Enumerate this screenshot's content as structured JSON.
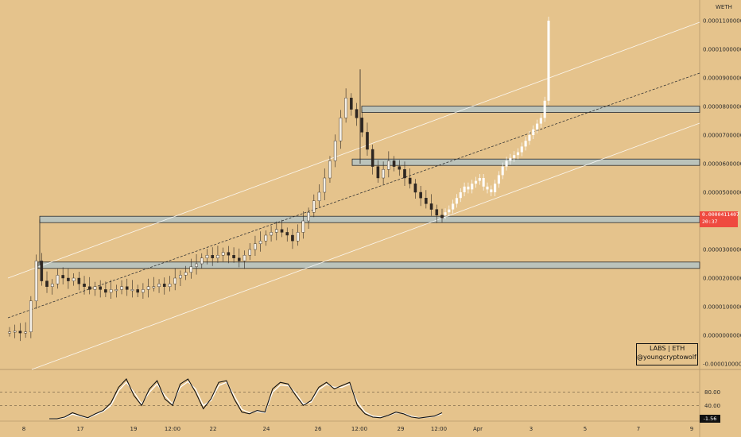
{
  "chart_data": {
    "type": "candlestick",
    "symbol_label": "WETH",
    "price_scale": {
      "ticks": [
        "0.0001100000",
        "0.0001000000",
        "0.0000900000",
        "0.0000800000",
        "0.0000700000",
        "0.0000600000",
        "0.0000500000",
        "0.0000300000",
        "0.0000200000",
        "0.0000100000",
        "0.0000000000",
        "-0.0000100000"
      ],
      "tick_values": [
        0.00011,
        0.0001,
        9e-05,
        8e-05,
        7e-05,
        6e-05,
        5e-05,
        3e-05,
        2e-05,
        1e-05,
        0,
        -1e-05
      ],
      "ylim": [
        -1.2e-05,
        0.000115
      ]
    },
    "time_axis": {
      "labels": [
        "8",
        "17",
        "19",
        "12:00",
        "22",
        "24",
        "26",
        "12:00",
        "29",
        "12:00",
        "Apr",
        "3",
        "5",
        "7",
        "9"
      ]
    },
    "current_price": {
      "value": "0.0000411407",
      "countdown": "20:37",
      "color": "#ef4a3f"
    },
    "support_resistance_zones": [
      {
        "price": 7.9e-05
      },
      {
        "price": 6.05e-05
      },
      {
        "price": 4.05e-05
      },
      {
        "price": 2.45e-05
      }
    ],
    "channel": {
      "upper": [
        [
          1.7e-05,
          9.9e-05
        ]
      ],
      "middle": [
        [
          8e-06,
          9e-05
        ]
      ],
      "lower": [
        [
          -1.2e-05,
          7.6e-05
        ]
      ]
    },
    "candles_historic": [
      1.2e-06,
      1.5e-06,
      8e-07,
      1.2e-06,
      1.2e-05,
      2.6e-05,
      1.9e-05,
      1.7e-05,
      1.8e-05,
      2.1e-05,
      2e-05,
      1.9e-05,
      2e-05,
      1.8e-05,
      1.7e-05,
      1.6e-05,
      1.7e-05,
      1.6e-05,
      1.5e-05,
      1.6e-05,
      1.6e-05,
      1.7e-05,
      1.6e-05,
      1.6e-05,
      1.5e-05,
      1.6e-05,
      1.7e-05,
      1.7e-05,
      1.8e-05,
      1.7e-05,
      1.8e-05,
      2e-05,
      2.1e-05,
      2.2e-05,
      2.4e-05,
      2.5e-05,
      2.7e-05,
      2.8e-05,
      2.7e-05,
      2.8e-05,
      2.9e-05,
      2.8e-05,
      2.7e-05,
      2.6e-05,
      2.8e-05,
      3e-05,
      3.2e-05,
      3.3e-05,
      3.5e-05,
      3.6e-05,
      3.7e-05,
      3.6e-05,
      3.5e-05,
      3.3e-05,
      3.6e-05,
      4e-05,
      4.3e-05,
      4.7e-05,
      5e-05,
      5.5e-05,
      6.1e-05,
      6.8e-05,
      7.6e-05,
      8.3e-05,
      7.9e-05,
      7.6e-05,
      7.1e-05,
      6.5e-05,
      5.9e-05,
      5.5e-05,
      5.8e-05,
      6.1e-05,
      5.9e-05,
      5.8e-05,
      5.5e-05,
      5.3e-05,
      5e-05,
      4.8e-05,
      4.6e-05,
      4.4e-05,
      4.2e-05,
      4.1e-05
    ],
    "candles_projection": [
      4.3e-05,
      4.4e-05,
      4.6e-05,
      4.8e-05,
      5e-05,
      5.2e-05,
      5.1e-05,
      5.3e-05,
      5.4e-05,
      5.5e-05,
      5.2e-05,
      5.1e-05,
      5e-05,
      5.3e-05,
      5.6e-05,
      5.9e-05,
      6.1e-05,
      6.2e-05,
      6.3e-05,
      6.4e-05,
      6.6e-05,
      6.8e-05,
      7e-05,
      7.2e-05,
      7.4e-05,
      7.6e-05,
      8.2e-05,
      0.00011
    ],
    "oscillator": {
      "levels": [
        "80.00",
        "40.00"
      ],
      "level_values": [
        80,
        40
      ],
      "current": "-1.56",
      "series_a": [
        0,
        0,
        5,
        18,
        10,
        3,
        15,
        25,
        48,
        95,
        120,
        70,
        40,
        90,
        115,
        60,
        40,
        105,
        120,
        80,
        30,
        60,
        110,
        115,
        60,
        20,
        15,
        25,
        20,
        90,
        110,
        105,
        70,
        40,
        55,
        95,
        110,
        90,
        100,
        110,
        40,
        15,
        5,
        3,
        10,
        20,
        15,
        5,
        2,
        5,
        8,
        18
      ],
      "series_b": [
        0,
        0,
        3,
        14,
        8,
        2,
        12,
        22,
        40,
        85,
        110,
        80,
        45,
        80,
        105,
        70,
        45,
        95,
        112,
        90,
        40,
        55,
        100,
        110,
        70,
        28,
        18,
        22,
        18,
        80,
        102,
        100,
        78,
        45,
        50,
        88,
        104,
        95,
        95,
        105,
        50,
        20,
        8,
        5,
        9,
        18,
        16,
        8,
        3,
        4,
        7,
        15
      ]
    },
    "watermark": {
      "line1": "LABS | ETH",
      "line2": "@youngcryptowolf"
    }
  }
}
